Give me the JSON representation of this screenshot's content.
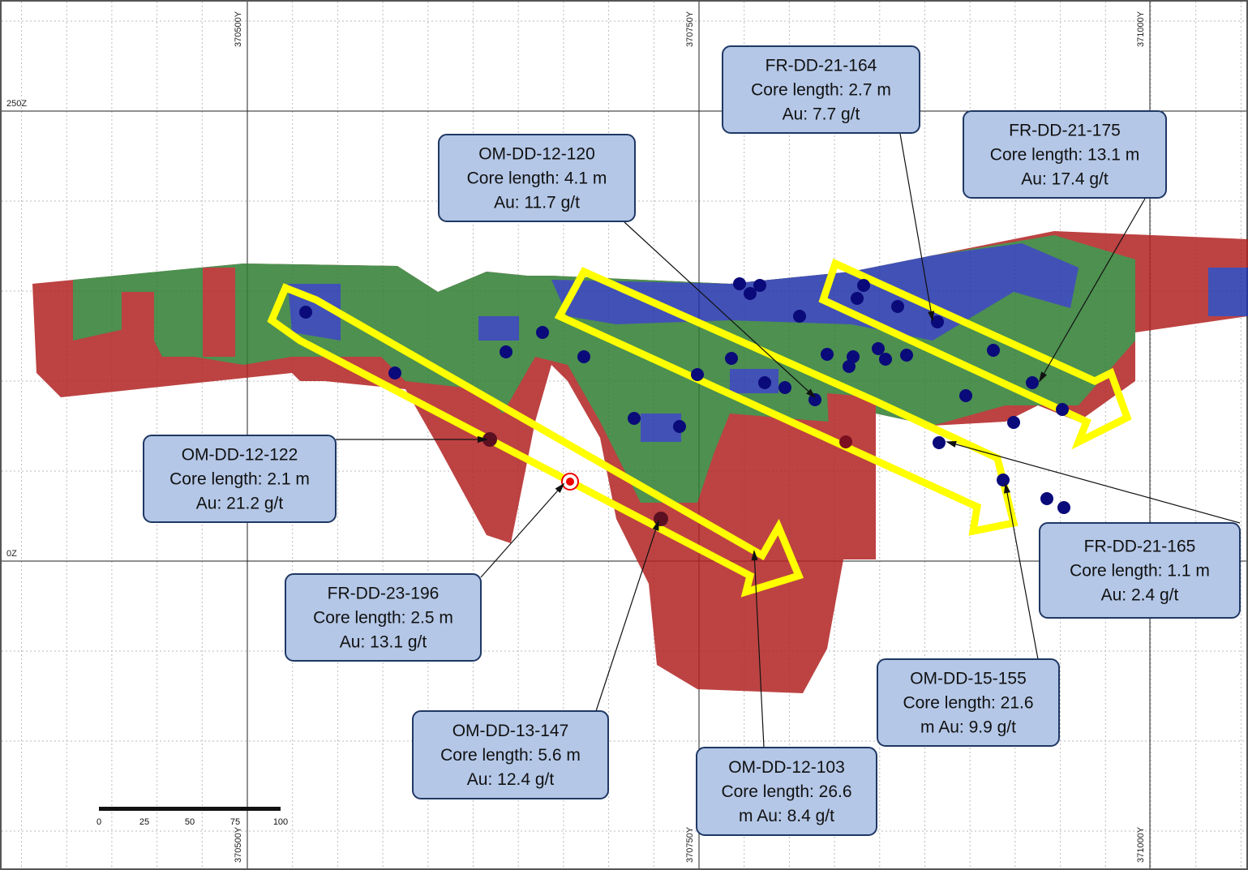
{
  "axes": {
    "top_x_labels": [
      "370500Y",
      "370750Y",
      "371000Y"
    ],
    "bottom_x_labels": [
      "370500Y",
      "370750Y",
      "371000Y"
    ],
    "z_labels": [
      "250Z",
      "0Z"
    ]
  },
  "scale_bar": {
    "labels": [
      0,
      25,
      50,
      75,
      100
    ]
  },
  "callouts": [
    {
      "lines": [
        "FR-DD-21-164",
        "Core length: 2.7 m",
        "Au: 7.7 g/t"
      ]
    },
    {
      "lines": [
        "FR-DD-21-175",
        "Core length: 13.1 m",
        "Au: 17.4 g/t"
      ]
    },
    {
      "lines": [
        "OM-DD-12-120",
        "Core length: 4.1 m",
        "Au: 11.7 g/t"
      ]
    },
    {
      "lines": [
        "OM-DD-12-122",
        "Core length: 2.1 m",
        "Au: 21.2 g/t"
      ]
    },
    {
      "lines": [
        "FR-DD-23-196",
        "Core length: 2.5 m",
        "Au: 13.1 g/t"
      ]
    },
    {
      "lines": [
        "OM-DD-13-147",
        "Core length: 5.6 m",
        "Au: 12.4 g/t"
      ]
    },
    {
      "lines": [
        "OM-DD-12-103",
        "Core length: 26.6",
        "m Au: 8.4 g/t"
      ]
    },
    {
      "lines": [
        "OM-DD-15-155",
        "Core length: 21.6",
        "m Au: 9.9 g/t"
      ]
    },
    {
      "lines": [
        "FR-DD-21-165",
        "Core length: 1.1 m",
        "Au: 2.4 g/t"
      ]
    }
  ]
}
